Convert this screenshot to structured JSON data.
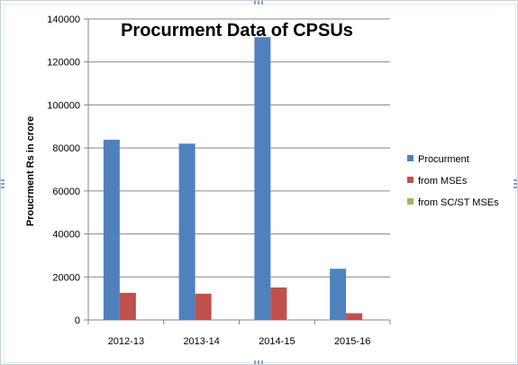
{
  "chart_data": {
    "type": "bar",
    "title": "Procurment Data of CPSUs",
    "xlabel": "",
    "ylabel": "Proucrment Rs in crore",
    "categories": [
      "2012-13",
      "2013-14",
      "2014-15",
      "2015-16"
    ],
    "ylim": [
      0,
      140000
    ],
    "yticks": [
      0,
      20000,
      40000,
      60000,
      80000,
      100000,
      120000,
      140000
    ],
    "grid": true,
    "legend_position": "right",
    "series": [
      {
        "name": "Procurment",
        "color": "#4f81bd",
        "values": [
          83800,
          82000,
          131500,
          23800
        ]
      },
      {
        "name": "from MSEs",
        "color": "#c0504d",
        "values": [
          12600,
          12200,
          15100,
          3100
        ]
      },
      {
        "name": "from SC/ST MSEs",
        "color": "#9bbb59",
        "values": [
          0,
          0,
          0,
          0
        ]
      }
    ]
  }
}
